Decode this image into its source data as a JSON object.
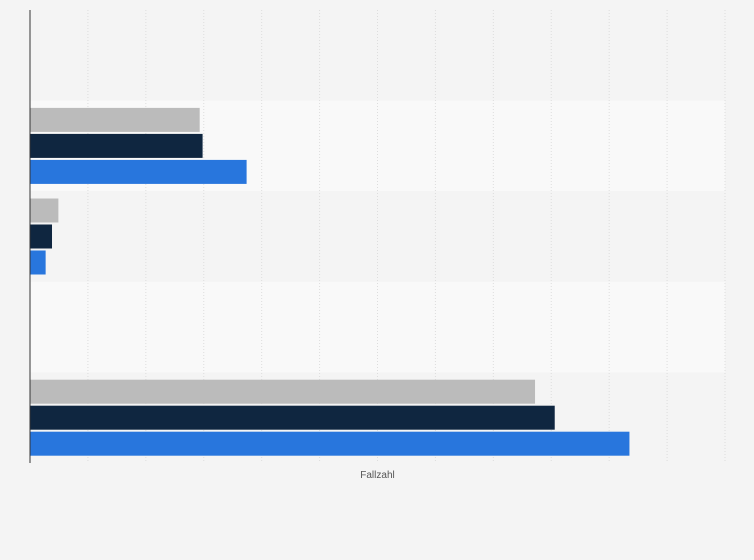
{
  "chart_data": {
    "type": "bar",
    "orientation": "horizontal",
    "categories": [
      "",
      "",
      "",
      "",
      ""
    ],
    "series": [
      {
        "values": [
          0,
          2930,
          490,
          0,
          8720
        ]
      },
      {
        "values": [
          0,
          2980,
          380,
          0,
          9060
        ]
      },
      {
        "values": [
          0,
          3740,
          270,
          0,
          10350
        ]
      }
    ],
    "xlabel": "Fallzahl",
    "ylabel": "",
    "xlim": [
      0,
      12000
    ],
    "x_gridlines": true,
    "series_colors": [
      "#bbbbbb",
      "#0f2640",
      "#2876dd"
    ],
    "band_colors": [
      "#f4f4f4",
      "#f9f9f9"
    ],
    "legend": "none"
  }
}
